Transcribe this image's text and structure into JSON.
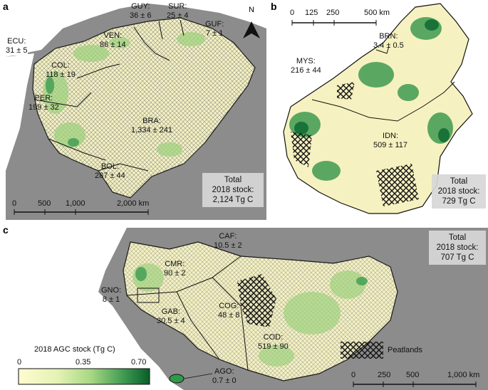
{
  "panels": {
    "a": {
      "label": "a",
      "countries": [
        {
          "code": "GUY:",
          "value": "36 ± 6"
        },
        {
          "code": "SUR:",
          "value": "25 ± 4"
        },
        {
          "code": "GUF:",
          "value": "7 ± 1"
        },
        {
          "code": "VEN:",
          "value": "86 ± 14"
        },
        {
          "code": "ECU:",
          "value": "31 ± 5"
        },
        {
          "code": "COL:",
          "value": "118 ± 19"
        },
        {
          "code": "PER:",
          "value": "199 ± 32"
        },
        {
          "code": "BRA:",
          "value": "1,334 ± 241"
        },
        {
          "code": "BOL:",
          "value": "287 ± 44"
        }
      ],
      "total": {
        "line1": "Total",
        "line2": "2018 stock:",
        "line3": "2,124 Tg C"
      },
      "north": "N",
      "scale_ticks": [
        "0",
        "500",
        "1,000",
        "2,000 km"
      ]
    },
    "b": {
      "label": "b",
      "countries": [
        {
          "code": "BRN:",
          "value": "3.4 ± 0.5"
        },
        {
          "code": "MYS:",
          "value": "216 ± 44"
        },
        {
          "code": "IDN:",
          "value": "509 ± 117"
        }
      ],
      "total": {
        "line1": "Total",
        "line2": "2018 stock:",
        "line3": "729 Tg C"
      },
      "scale_ticks": [
        "0",
        "125",
        "250",
        "500 km"
      ]
    },
    "c": {
      "label": "c",
      "countries": [
        {
          "code": "CAF:",
          "value": "10.5 ± 2"
        },
        {
          "code": "CMR:",
          "value": "90 ± 2"
        },
        {
          "code": "GNO:",
          "value": "8 ± 1"
        },
        {
          "code": "GAB:",
          "value": "30.5 ± 4"
        },
        {
          "code": "COG:",
          "value": "48 ± 8"
        },
        {
          "code": "COD:",
          "value": "519 ± 90"
        },
        {
          "code": "AGO:",
          "value": "0.7 ± 0"
        }
      ],
      "total": {
        "line1": "Total",
        "line2": "2018 stock:",
        "line3": "707 Tg C"
      },
      "legend": {
        "title": "2018 AGC stock (Tg C)",
        "ticks": [
          "0",
          "0.35",
          "0.70"
        ],
        "colors": [
          "#fffbd0",
          "#cfe9a0",
          "#7cc36c",
          "#2e9a4a",
          "#0b5e2a"
        ],
        "peatlands_label": "Peatlands"
      },
      "scale_ticks": [
        "0",
        "250",
        "500",
        "1,000 km"
      ]
    }
  },
  "colors": {
    "ocean": "#ffffff",
    "land_outside": "#8c8c8c",
    "forest_low": "#fdf8cf",
    "forest_high": "#1a7a3a"
  }
}
